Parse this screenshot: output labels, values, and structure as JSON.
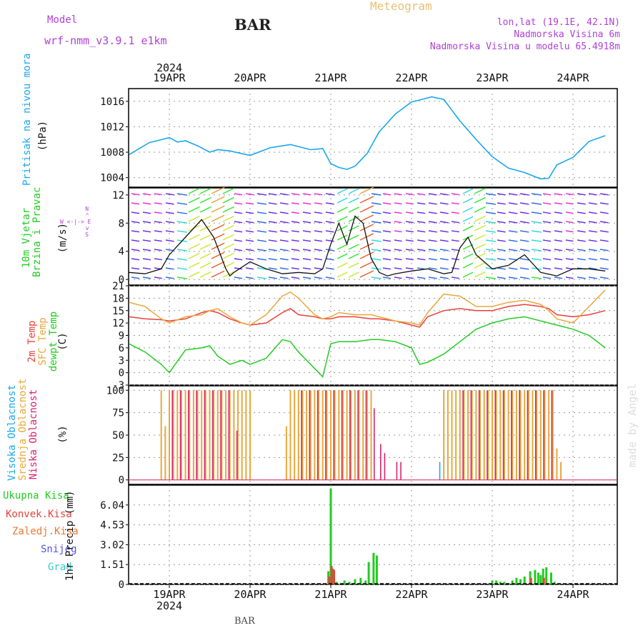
{
  "header": {
    "model_label": "Model",
    "model_name": "wrf-nmm_v3.9.1 e1km",
    "station": "BAR",
    "chart_title": "Meteogram",
    "lonlat": "lon,lat (19.1E, 42.1N)",
    "elevation": "Nadmorska Visina 6m",
    "model_elevation": "Nadmorska Visina u modelu 65.4918m",
    "footer_station": "BAR",
    "watermark": "made by Angel"
  },
  "colors": {
    "pressure": "#1aa7ee",
    "temp2m": "#e8413c",
    "sfc_temp": "#e8a83c",
    "dewpoint": "#22cc22",
    "cloud_high": "#1aa7ee",
    "cloud_mid": "#e8a83c",
    "cloud_low": "#d8246c",
    "precip_total": "#22cc22",
    "precip_conv": "#e8413c",
    "label_purple": "#b040d8",
    "header_title": "#e8c078"
  },
  "time_axis": {
    "year": "2024",
    "dates": [
      "19APR",
      "20APR",
      "21APR",
      "22APR",
      "23APR",
      "24APR"
    ]
  },
  "chart_data": [
    {
      "type": "line",
      "panel": "pressure",
      "ylabel": "(hPa)",
      "title_lines": [
        "Pritisak na nivou mora"
      ],
      "yticks": [
        1004,
        1008,
        1012,
        1016
      ],
      "ylim": [
        1002.5,
        1018
      ],
      "x_days": [
        -0.5,
        -0.25,
        0.0,
        0.1,
        0.2,
        0.35,
        0.5,
        0.6,
        0.75,
        1.0,
        1.25,
        1.5,
        1.75,
        1.85,
        1.9,
        2.0,
        2.1,
        2.2,
        2.3,
        2.45,
        2.6,
        2.8,
        3.0,
        3.1,
        3.25,
        3.4,
        3.5,
        3.6,
        3.8,
        4.0,
        4.2,
        4.4,
        4.6,
        4.7,
        4.8,
        5.0,
        5.2,
        5.4
      ],
      "series": [
        {
          "values": [
            1007.6,
            1009.5,
            1010.3,
            1009.6,
            1009.8,
            1009.0,
            1008.0,
            1008.4,
            1008.2,
            1007.5,
            1008.7,
            1009.2,
            1008.4,
            1008.5,
            1008.6,
            1006.2,
            1005.6,
            1005.3,
            1005.8,
            1007.8,
            1011.2,
            1014.0,
            1015.9,
            1016.2,
            1016.7,
            1016.3,
            1014.6,
            1012.9,
            1010.0,
            1007.3,
            1005.5,
            1004.8,
            1003.8,
            1003.9,
            1006.0,
            1007.2,
            1009.7,
            1010.6
          ]
        }
      ]
    },
    {
      "type": "line",
      "panel": "wind",
      "ylabel": "(m/s)",
      "title_lines": [
        "10m Vjetar",
        "Brzina i Pravac"
      ],
      "compass": [
        "N",
        "W",
        "E",
        "S"
      ],
      "yticks": [
        0,
        4,
        8,
        12
      ],
      "ylim": [
        -0.8,
        13
      ],
      "x_days": [
        -0.5,
        -0.3,
        -0.1,
        0.0,
        0.2,
        0.4,
        0.55,
        0.7,
        0.75,
        0.8,
        1.0,
        1.2,
        1.4,
        1.6,
        1.8,
        1.9,
        2.0,
        2.1,
        2.2,
        2.3,
        2.4,
        2.5,
        2.6,
        2.7,
        2.8,
        3.0,
        3.2,
        3.4,
        3.5,
        3.6,
        3.7,
        3.8,
        4.0,
        4.2,
        4.4,
        4.6,
        4.8,
        5.0,
        5.2,
        5.4
      ],
      "series": [
        {
          "values": [
            1.0,
            0.8,
            1.5,
            3.5,
            6.0,
            8.5,
            6.0,
            1.5,
            0.5,
            1.0,
            2.5,
            1.5,
            0.8,
            1.0,
            0.8,
            1.5,
            5.0,
            8.0,
            5.0,
            9.0,
            8.0,
            3.0,
            1.0,
            0.5,
            0.8,
            1.2,
            1.5,
            0.8,
            1.0,
            4.5,
            6.0,
            3.5,
            1.5,
            2.0,
            3.5,
            1.0,
            0.5,
            1.5,
            1.5,
            1.2
          ]
        }
      ]
    },
    {
      "type": "line",
      "panel": "temperature",
      "ylabel": "(C)",
      "title_lines": [
        "2m Temp",
        "SFC Temp",
        "dewpt Temp"
      ],
      "yticks": [
        -3,
        0,
        3,
        6,
        9,
        12,
        15,
        18,
        21
      ],
      "ylim": [
        -3,
        21
      ],
      "x_days": [
        -0.5,
        -0.3,
        -0.1,
        0.0,
        0.2,
        0.4,
        0.5,
        0.6,
        0.75,
        0.9,
        1.0,
        1.2,
        1.4,
        1.5,
        1.6,
        1.8,
        1.9,
        2.0,
        2.1,
        2.3,
        2.5,
        2.6,
        2.8,
        3.0,
        3.1,
        3.2,
        3.4,
        3.6,
        3.8,
        4.0,
        4.2,
        4.4,
        4.6,
        4.7,
        4.8,
        5.0,
        5.2,
        5.4
      ],
      "series": [
        {
          "name": "2m Temp",
          "values": [
            13.5,
            13.0,
            12.8,
            12.5,
            13.0,
            14.5,
            15.0,
            14.5,
            13.0,
            12.0,
            11.5,
            12.0,
            14.5,
            15.5,
            14.0,
            13.5,
            13.0,
            13.0,
            13.5,
            13.5,
            13.0,
            13.0,
            12.5,
            11.5,
            11.0,
            13.5,
            15.0,
            15.5,
            15.0,
            15.0,
            16.0,
            16.5,
            16.0,
            15.5,
            14.0,
            13.5,
            14.0,
            15.0
          ]
        },
        {
          "name": "SFC Temp",
          "values": [
            17.0,
            16.0,
            13.0,
            12.0,
            13.5,
            14.0,
            15.0,
            15.5,
            13.5,
            12.0,
            11.5,
            14.0,
            18.5,
            19.5,
            18.0,
            14.0,
            13.0,
            13.5,
            14.5,
            14.0,
            14.0,
            13.5,
            12.5,
            12.0,
            11.5,
            14.5,
            19.0,
            18.5,
            16.0,
            16.0,
            17.0,
            17.5,
            16.5,
            15.0,
            13.0,
            12.0,
            16.0,
            20.0
          ]
        },
        {
          "name": "dewpt Temp",
          "values": [
            7.0,
            5.0,
            2.0,
            0.0,
            5.5,
            6.0,
            6.5,
            4.0,
            2.0,
            3.0,
            2.0,
            3.5,
            8.0,
            7.5,
            5.0,
            1.0,
            -1.0,
            7.0,
            7.5,
            7.5,
            8.0,
            8.0,
            7.5,
            6.0,
            2.0,
            2.5,
            4.5,
            7.5,
            10.5,
            12.0,
            13.0,
            13.5,
            12.5,
            12.0,
            11.5,
            10.5,
            9.0,
            6.0
          ]
        }
      ]
    },
    {
      "type": "bar",
      "panel": "clouds",
      "ylabel": "(%)",
      "title_lines": [
        "Visoka Oblacnost",
        "Srednja Oblacnost",
        "Niska Oblacnost"
      ],
      "yticks": [
        0,
        25,
        50,
        75,
        100
      ],
      "ylim": [
        -5,
        105
      ],
      "series": [
        {
          "name": "Visoka Oblacnost",
          "x_days": [
            3.35,
            3.4,
            3.45,
            3.6,
            3.7,
            3.8,
            3.9,
            4.0,
            4.05
          ],
          "values": [
            20,
            100,
            50,
            100,
            100,
            100,
            100,
            100,
            100
          ]
        },
        {
          "name": "Srednja Oblacnost",
          "x_days": [
            -0.1,
            -0.05,
            0.0,
            0.05,
            0.1,
            0.15,
            0.2,
            0.25,
            0.3,
            0.35,
            0.4,
            0.45,
            0.5,
            0.55,
            0.6,
            0.65,
            0.7,
            0.75,
            0.8,
            0.85,
            0.9,
            0.95,
            1.0,
            1.45,
            1.5,
            1.55,
            1.6,
            1.65,
            1.7,
            1.75,
            1.8,
            1.85,
            1.9,
            1.95,
            2.0,
            2.05,
            2.1,
            2.15,
            2.2,
            2.25,
            2.3,
            2.35,
            2.4,
            2.45,
            2.5,
            3.4,
            3.45,
            3.5,
            3.55,
            3.6,
            3.65,
            3.7,
            3.75,
            3.8,
            3.85,
            3.9,
            3.95,
            4.0,
            4.05,
            4.1,
            4.15,
            4.2,
            4.25,
            4.3,
            4.35,
            4.4,
            4.45,
            4.5,
            4.55,
            4.6,
            4.65,
            4.7,
            4.75,
            4.8,
            4.85
          ],
          "values": [
            100,
            60,
            100,
            100,
            100,
            100,
            100,
            100,
            100,
            100,
            100,
            100,
            100,
            100,
            100,
            100,
            100,
            100,
            100,
            100,
            100,
            100,
            100,
            60,
            100,
            100,
            100,
            100,
            100,
            100,
            100,
            100,
            100,
            100,
            100,
            100,
            100,
            100,
            100,
            100,
            100,
            100,
            100,
            100,
            100,
            100,
            100,
            100,
            100,
            100,
            100,
            100,
            100,
            100,
            100,
            100,
            100,
            100,
            100,
            100,
            100,
            100,
            100,
            100,
            100,
            100,
            100,
            100,
            100,
            100,
            100,
            100,
            100,
            35,
            20
          ]
        },
        {
          "name": "Niska Oblacnost",
          "x_days": [
            0.02,
            0.12,
            0.22,
            0.32,
            0.42,
            0.52,
            0.62,
            0.72,
            0.82,
            1.62,
            1.72,
            1.82,
            1.92,
            2.02,
            2.12,
            2.22,
            2.32,
            2.42,
            2.52,
            2.6,
            2.65,
            2.8,
            2.85,
            3.62,
            3.72,
            3.82,
            3.92,
            4.02,
            4.12,
            4.22,
            4.32,
            4.42,
            4.52,
            4.62,
            4.72
          ],
          "values": [
            100,
            100,
            100,
            100,
            100,
            100,
            100,
            100,
            55,
            100,
            100,
            100,
            100,
            100,
            100,
            100,
            100,
            100,
            80,
            40,
            30,
            20,
            20,
            100,
            100,
            100,
            100,
            100,
            100,
            100,
            100,
            100,
            100,
            100,
            100
          ]
        }
      ]
    },
    {
      "type": "bar",
      "panel": "precipitation",
      "ylabel": "1hr Precip (mm)",
      "legend": [
        "Ukupna Kisa",
        "Konvek.Kisa",
        "Zaledj.Kisa",
        "Snijeg",
        "Grad"
      ],
      "yticks": [
        "0",
        "1.51",
        "3.02",
        "4.53",
        "6.04"
      ],
      "ylim": [
        0,
        7.55
      ],
      "series": [
        {
          "name": "Ukupna Kisa",
          "x_days": [
            1.97,
            2.0,
            2.03,
            2.07,
            2.17,
            2.23,
            2.3,
            2.37,
            2.43,
            2.47,
            2.53,
            2.57,
            4.0,
            4.05,
            4.1,
            4.15,
            4.25,
            4.3,
            4.35,
            4.4,
            4.47,
            4.53,
            4.57,
            4.6,
            4.63,
            4.67,
            4.73,
            4.77,
            4.83
          ],
          "values": [
            1.0,
            7.3,
            1.2,
            0.2,
            0.3,
            0.2,
            0.4,
            0.5,
            0.3,
            1.7,
            2.4,
            2.2,
            0.3,
            0.3,
            0.2,
            0.2,
            0.3,
            0.5,
            0.4,
            0.6,
            1.0,
            1.1,
            0.9,
            0.7,
            1.2,
            1.3,
            0.9,
            0.2,
            0.1
          ]
        },
        {
          "name": "Konvek.Kisa",
          "x_days": [
            1.98,
            2.01,
            2.04,
            4.48,
            4.64
          ],
          "values": [
            0.6,
            1.4,
            1.1,
            0.5,
            0.5
          ]
        }
      ]
    }
  ]
}
